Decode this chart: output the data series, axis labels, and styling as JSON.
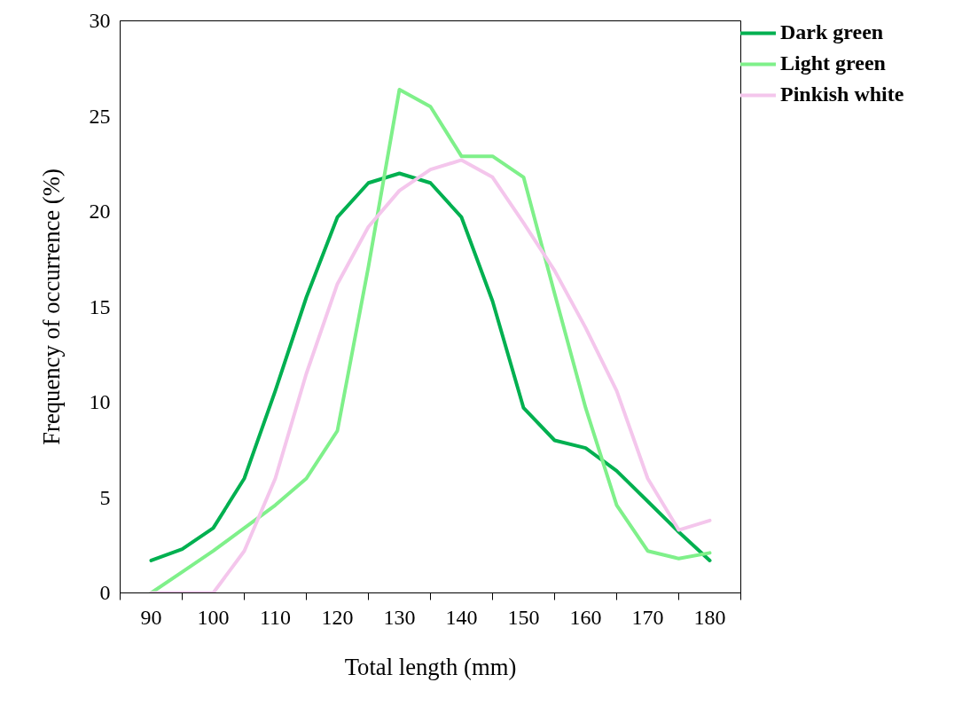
{
  "chart_data": {
    "type": "line",
    "xlabel": "Total length (mm)",
    "ylabel": "Frequency of occurrence (%)",
    "x": [
      90,
      95,
      100,
      105,
      110,
      115,
      120,
      125,
      130,
      135,
      140,
      145,
      150,
      155,
      160,
      165,
      170,
      175,
      180
    ],
    "xlim": [
      85,
      185
    ],
    "xticks": [
      {
        "value": 85,
        "label": null
      },
      90,
      {
        "value": 95,
        "label": null
      },
      100,
      {
        "value": 105,
        "label": null
      },
      110,
      {
        "value": 115,
        "label": null
      },
      120,
      {
        "value": 125,
        "label": null
      },
      130,
      {
        "value": 135,
        "label": null
      },
      140,
      {
        "value": 145,
        "label": null
      },
      150,
      {
        "value": 155,
        "label": null
      },
      160,
      {
        "value": 165,
        "label": null
      },
      170,
      {
        "value": 175,
        "label": null
      },
      180,
      {
        "value": 185,
        "label": null
      }
    ],
    "ylim": [
      0,
      30
    ],
    "yticks": [
      0,
      5,
      10,
      15,
      20,
      25,
      30
    ],
    "grid": false,
    "legend": "right",
    "marker": "none",
    "line_style": "solid",
    "series": [
      {
        "name": "Dark green",
        "color": "#00b050",
        "values": [
          1.7,
          2.3,
          3.4,
          6.0,
          10.6,
          15.5,
          19.7,
          21.5,
          22.0,
          21.5,
          19.7,
          15.3,
          9.7,
          8.0,
          7.6,
          6.4,
          4.8,
          3.2,
          1.7
        ]
      },
      {
        "name": "Light green",
        "color": "#7ff08a",
        "values": [
          0,
          1.1,
          2.2,
          3.4,
          4.6,
          6.0,
          8.5,
          17.1,
          26.4,
          25.5,
          22.9,
          22.9,
          21.8,
          15.7,
          9.7,
          4.6,
          2.2,
          1.8,
          2.1
        ]
      },
      {
        "name": "Pinkish white",
        "color": "#f4c6ec",
        "values": [
          0,
          0,
          0,
          2.2,
          6.0,
          11.5,
          16.2,
          19.2,
          21.1,
          22.2,
          22.7,
          21.8,
          19.4,
          16.9,
          13.9,
          10.6,
          6.0,
          3.3,
          3.8
        ]
      }
    ]
  }
}
